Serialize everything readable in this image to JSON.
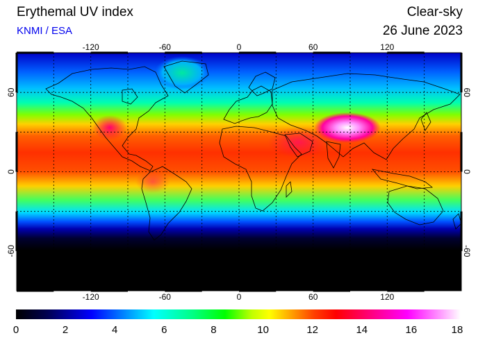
{
  "header": {
    "title": "Erythemal UV index",
    "subtitle": "KNMI / ESA",
    "sky_condition": "Clear-sky",
    "date": "26 June 2023"
  },
  "map": {
    "lon_ticks": [
      "-120",
      "-60",
      "0",
      "60",
      "120"
    ],
    "lat_ticks": [
      "60",
      "0",
      "-60"
    ],
    "lon_range": [
      -180,
      180
    ],
    "lat_range": [
      -90,
      90
    ],
    "grid": "dotted 30 degree"
  },
  "colorbar": {
    "labels": [
      "0",
      "2",
      "4",
      "6",
      "8",
      "10",
      "12",
      "14",
      "16",
      "18"
    ],
    "min": 0,
    "max": 18,
    "colors": [
      "#000000",
      "#00005a",
      "#0000ff",
      "#0080ff",
      "#00ffff",
      "#00ff80",
      "#00ff00",
      "#c0ff00",
      "#ffff00",
      "#ffa000",
      "#ff4000",
      "#ff0000",
      "#ff0080",
      "#ff00ff",
      "#ff80ff",
      "#ffffff"
    ]
  }
}
